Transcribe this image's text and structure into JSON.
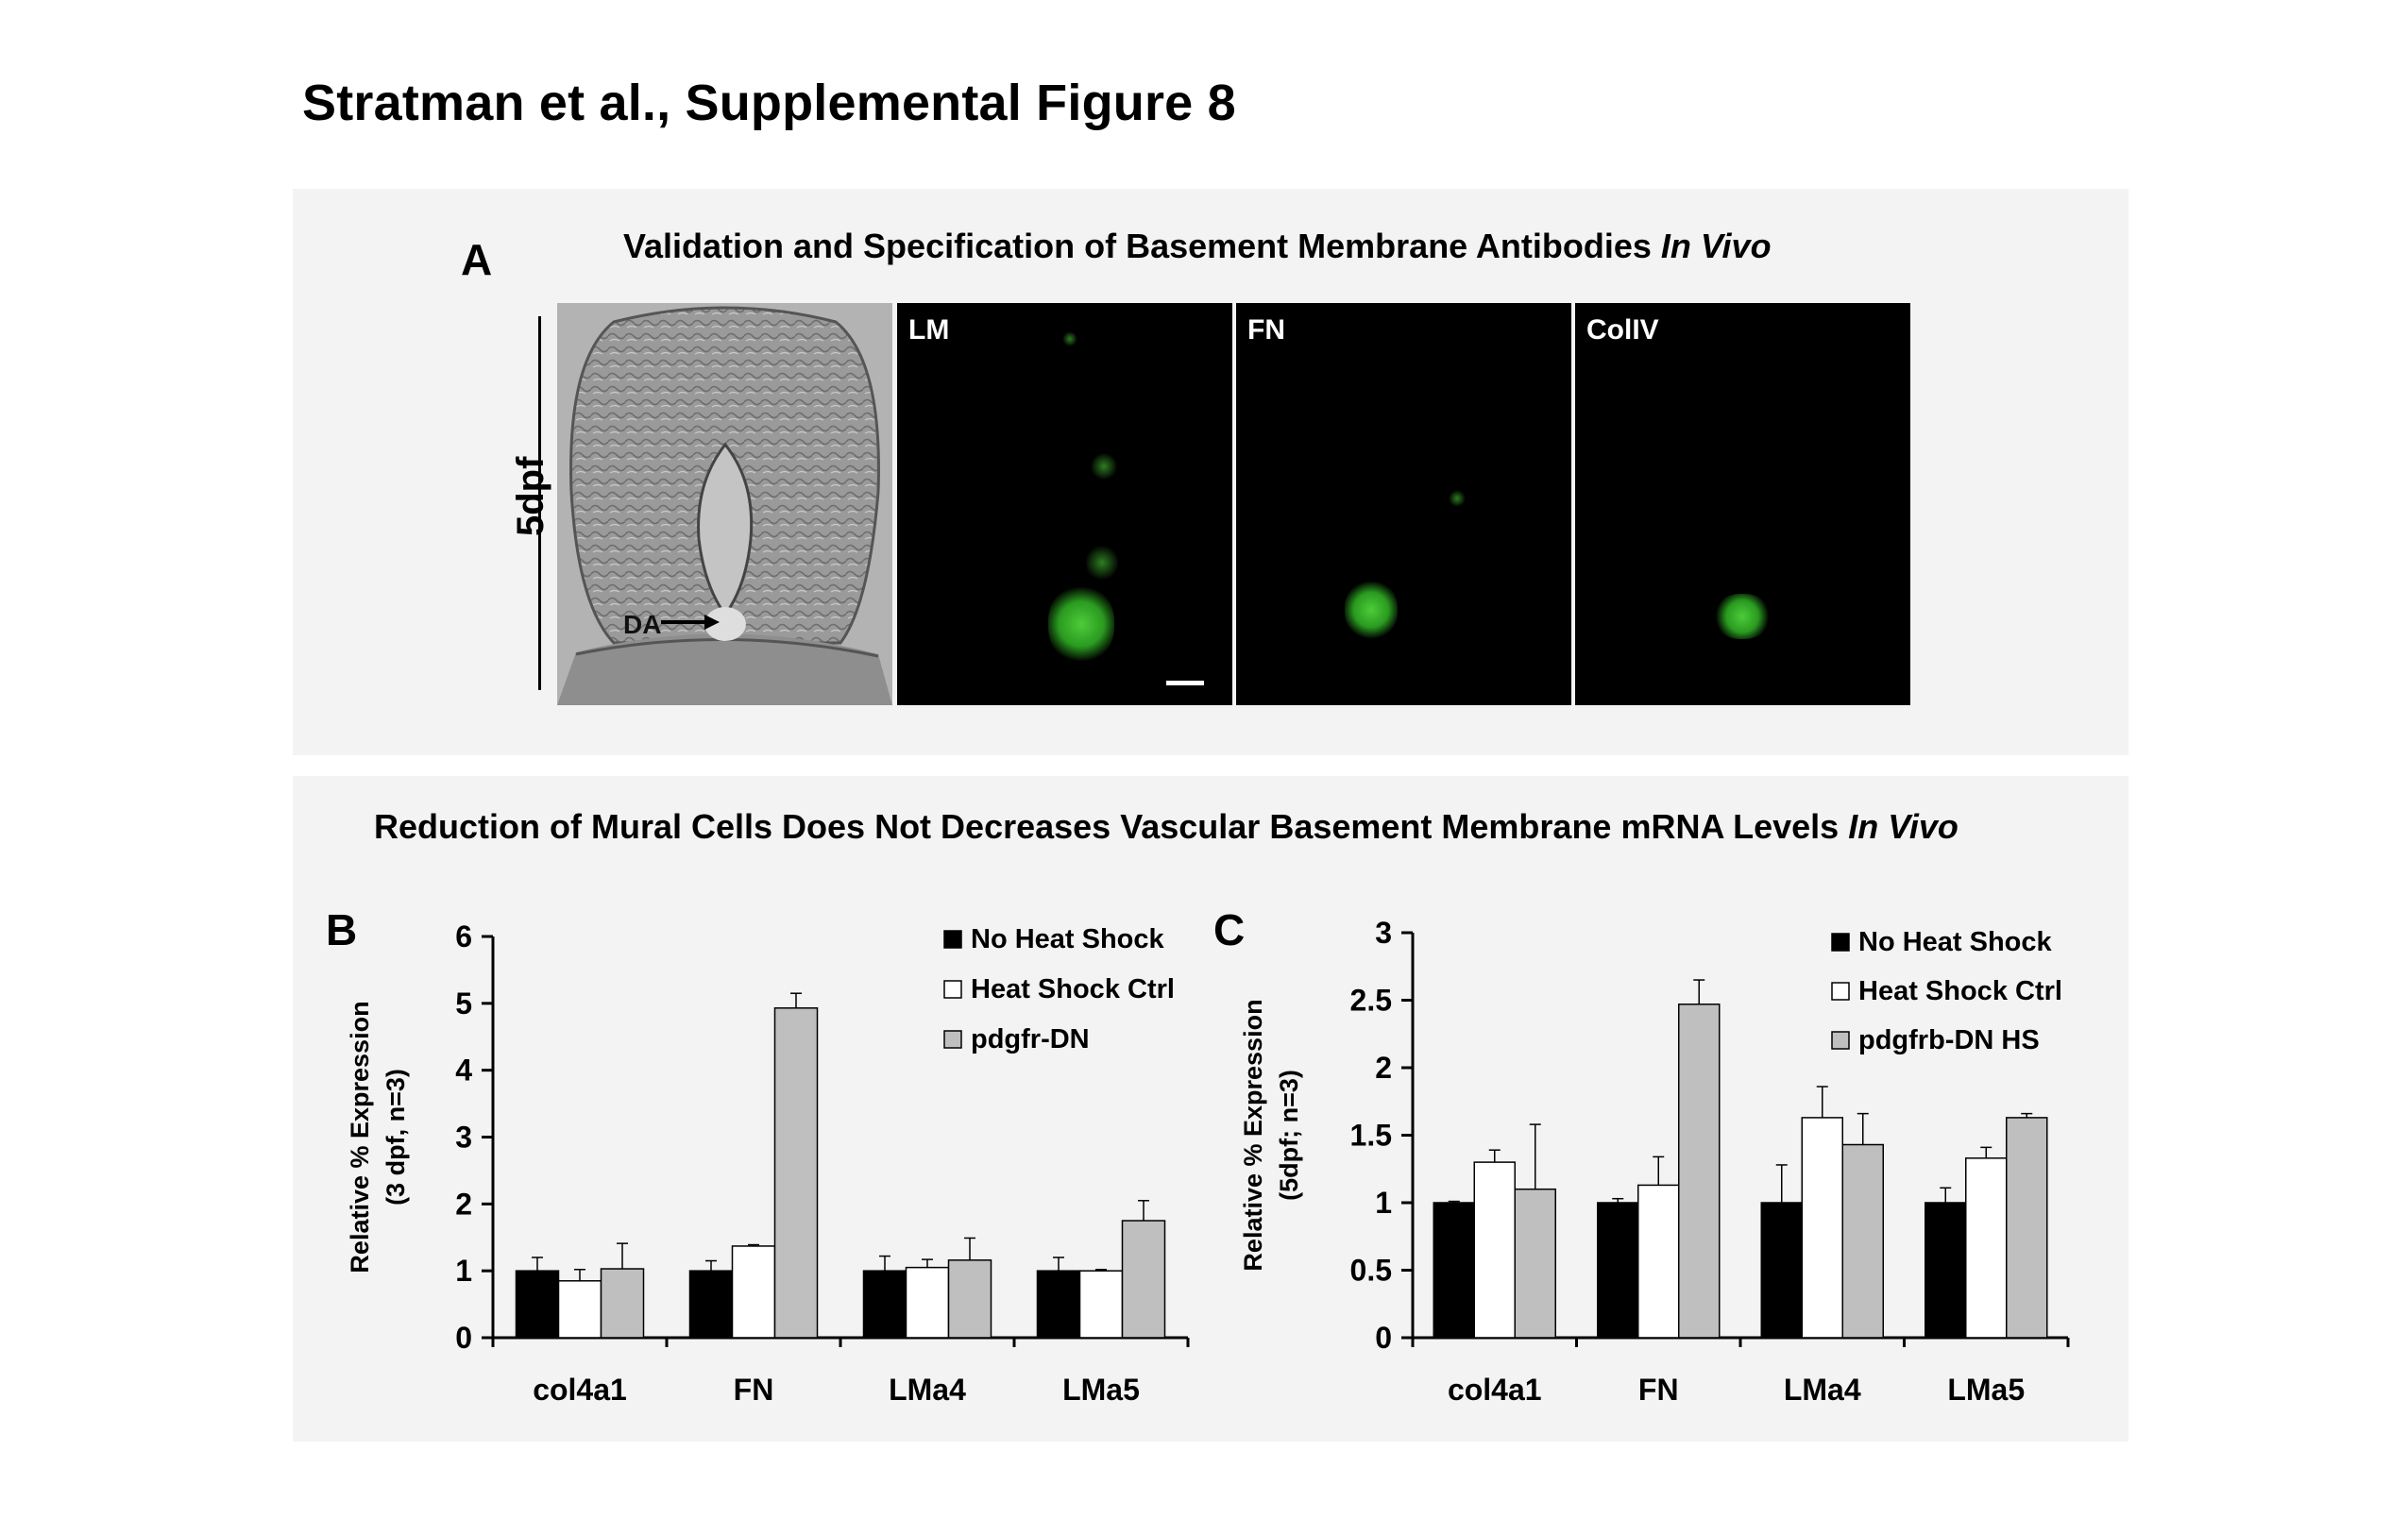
{
  "figure_title": "Stratman et al., Supplemental Figure 8",
  "panel_a": {
    "letter": "A",
    "title_plain": "Validation and Specification of Basement Membrane Antibodies ",
    "title_italic": "In Vivo",
    "row_label": "5dpf",
    "image_labels": [
      "LM",
      "FN",
      "ColIV"
    ],
    "brightfield_annotation": "DA"
  },
  "panel_bc_title_plain": "Reduction of Mural Cells Does Not Decreases Vascular Basement Membrane mRNA Levels ",
  "panel_bc_title_italic": "In Vivo",
  "colors": {
    "black_bar": "#000000",
    "white_bar": "#ffffff",
    "gray_bar": "#bfbfbf",
    "green_stain": "#3fbf2e"
  },
  "chart_data": [
    {
      "panel": "B",
      "type": "bar",
      "categories": [
        "col4a1",
        "FN",
        "LMa4",
        "LMa5"
      ],
      "ylabel_lines": [
        "Relative % Expression",
        "(3 dpf, n=3)"
      ],
      "ylim": [
        0,
        6
      ],
      "yticks": [
        "0",
        "1",
        "2",
        "3",
        "4",
        "5",
        "6"
      ],
      "legend_position": "top-right",
      "series": [
        {
          "name": "No Heat Shock",
          "color": "#000000",
          "values": [
            1.0,
            1.0,
            1.0,
            1.0
          ],
          "errors": [
            0.2,
            0.15,
            0.22,
            0.2
          ]
        },
        {
          "name": "Heat Shock Ctrl",
          "color": "#ffffff",
          "values": [
            0.85,
            1.37,
            1.05,
            1.0
          ],
          "errors": [
            0.17,
            0.02,
            0.12,
            0.02
          ]
        },
        {
          "name": "pdgfr-DN",
          "color": "#bfbfbf",
          "values": [
            1.03,
            4.93,
            1.16,
            1.75
          ],
          "errors": [
            0.38,
            0.22,
            0.33,
            0.3
          ]
        }
      ]
    },
    {
      "panel": "C",
      "type": "bar",
      "categories": [
        "col4a1",
        "FN",
        "LMa4",
        "LMa5"
      ],
      "ylabel_lines": [
        "Relative % Expression",
        "(5dpf; n=3)"
      ],
      "ylim": [
        0,
        3
      ],
      "yticks": [
        "0",
        "0.5",
        "1",
        "1.5",
        "2",
        "2.5",
        "3"
      ],
      "legend_position": "top-right",
      "series": [
        {
          "name": "No Heat Shock",
          "color": "#000000",
          "values": [
            1.0,
            1.0,
            1.0,
            1.0
          ],
          "errors": [
            0.01,
            0.03,
            0.28,
            0.11
          ]
        },
        {
          "name": "Heat Shock Ctrl",
          "color": "#ffffff",
          "values": [
            1.3,
            1.13,
            1.63,
            1.33
          ],
          "errors": [
            0.09,
            0.21,
            0.23,
            0.08
          ]
        },
        {
          "name": "pdgfrb-DN HS",
          "color": "#bfbfbf",
          "values": [
            1.1,
            2.47,
            1.43,
            1.63
          ],
          "errors": [
            0.48,
            0.18,
            0.23,
            0.03
          ]
        }
      ]
    }
  ]
}
